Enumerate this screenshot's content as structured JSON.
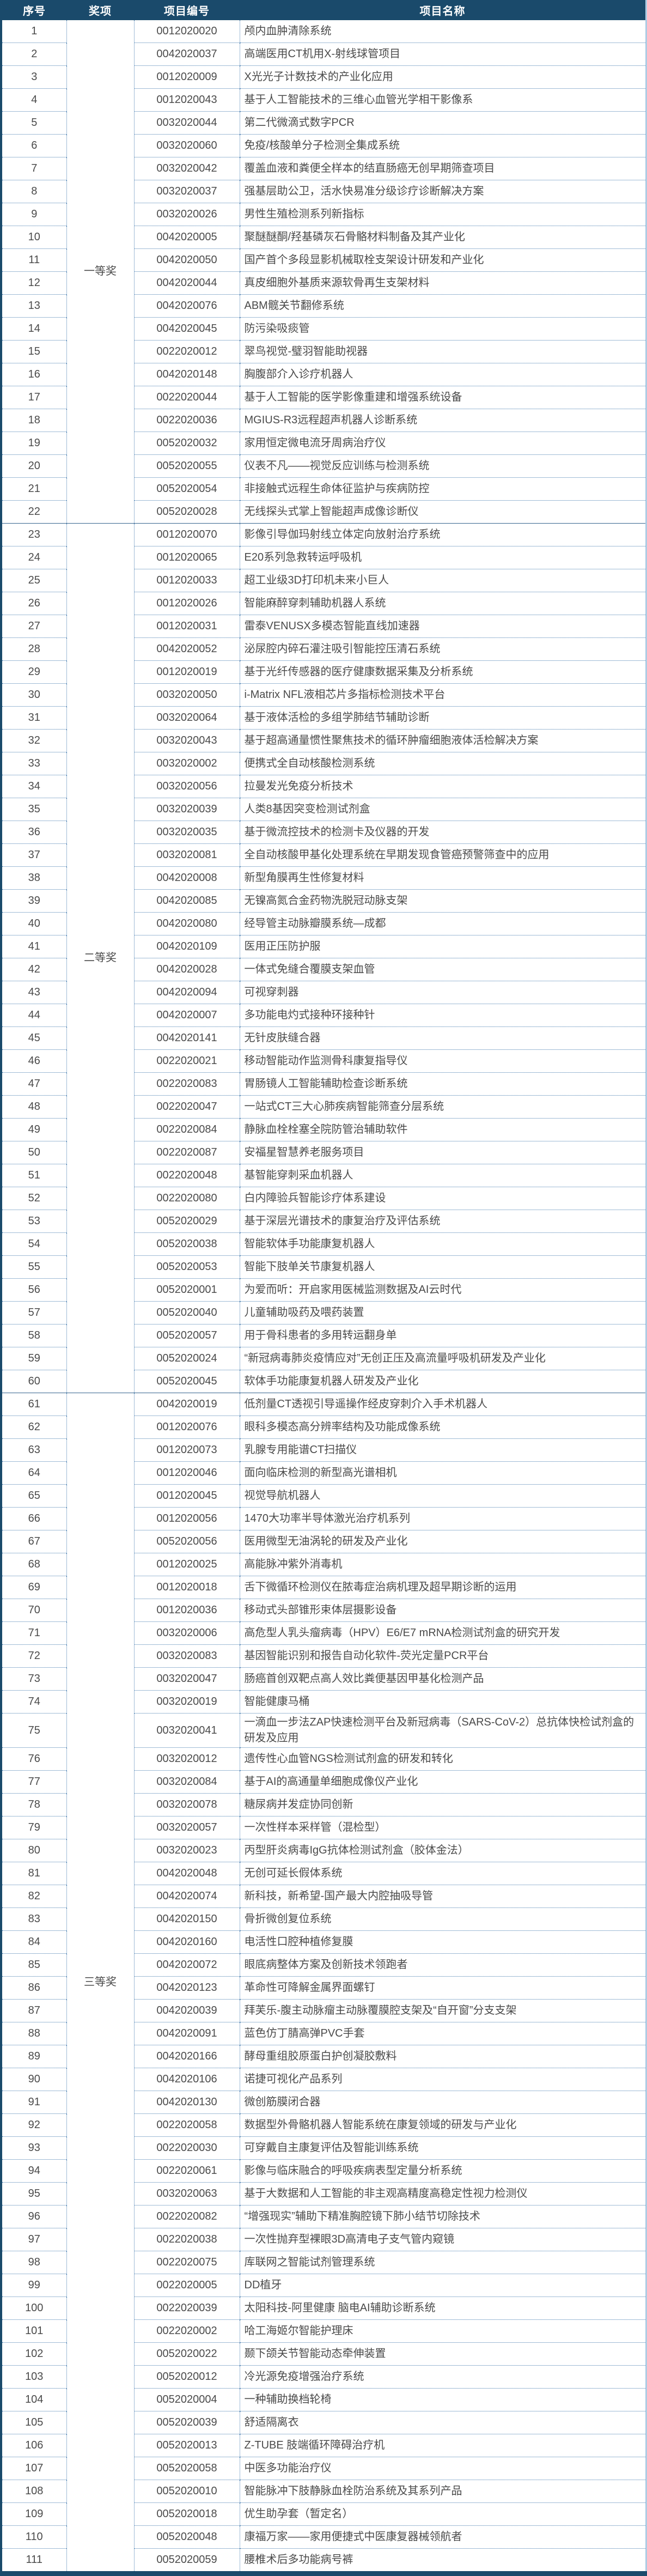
{
  "colors": {
    "header_bg": "#1a4a6b",
    "header_text": "#ffffff",
    "body_text": "#4a4a4a",
    "grid_dotted_line": "#4279ad",
    "group_boundary_line": "#36648e",
    "left_border": "#1a4a6b",
    "right_border": "#aecce4",
    "bottom_bar": "#1a4a6b"
  },
  "header": {
    "cols": [
      "序号",
      "奖项",
      "项目编号",
      "项目名称"
    ]
  },
  "table": {
    "award_groups": [
      {
        "label": "一等奖",
        "start": 1,
        "end": 22
      },
      {
        "label": "二等奖",
        "start": 23,
        "end": 60
      },
      {
        "label": "三等奖",
        "start": 61,
        "end": 111
      }
    ],
    "rows": [
      {
        "no": 1,
        "code": "0012020020",
        "name": "颅内血肿清除系统"
      },
      {
        "no": 2,
        "code": "0042020037",
        "name": "高端医用CT机用X-射线球管项目"
      },
      {
        "no": 3,
        "code": "0012020009",
        "name": "X光光子计数技术的产业化应用"
      },
      {
        "no": 4,
        "code": "0012020043",
        "name": "基于人工智能技术的三维心血管光学相干影像系"
      },
      {
        "no": 5,
        "code": "0032020044",
        "name": "第二代微滴式数字PCR"
      },
      {
        "no": 6,
        "code": "0032020060",
        "name": "免疫/核酸单分子检测全集成系统"
      },
      {
        "no": 7,
        "code": "0032020042",
        "name": "覆盖血液和粪便全样本的结直肠癌无创早期筛查项目"
      },
      {
        "no": 8,
        "code": "0032020037",
        "name": "强基层助公卫，活水快易准分级诊疗诊断解决方案"
      },
      {
        "no": 9,
        "code": "0032020026",
        "name": "男性生殖检测系列新指标"
      },
      {
        "no": 10,
        "code": "0042020005",
        "name": "聚醚醚酮/羟基磷灰石骨骼材料制备及其产业化"
      },
      {
        "no": 11,
        "code": "0042020050",
        "name": "国产首个多段显影机械取栓支架设计研发和产业化"
      },
      {
        "no": 12,
        "code": "0042020044",
        "name": "真皮细胞外基质来源软骨再生支架材料"
      },
      {
        "no": 13,
        "code": "0042020076",
        "name": "ABM髋关节翻修系统"
      },
      {
        "no": 14,
        "code": "0042020045",
        "name": "防污染吸痰管"
      },
      {
        "no": 15,
        "code": "0022020012",
        "name": "翠鸟视觉-璧羽智能助视器"
      },
      {
        "no": 16,
        "code": "0042020148",
        "name": "胸腹部介入诊疗机器人"
      },
      {
        "no": 17,
        "code": "0022020044",
        "name": "基于人工智能的医学影像重建和增强系统设备"
      },
      {
        "no": 18,
        "code": "0022020036",
        "name": "MGIUS-R3远程超声机器人诊断系统"
      },
      {
        "no": 19,
        "code": "0052020032",
        "name": "家用恒定微电流牙周病治疗仪"
      },
      {
        "no": 20,
        "code": "0052020055",
        "name": "仪表不凡——视觉反应训练与检测系统"
      },
      {
        "no": 21,
        "code": "0052020054",
        "name": "非接触式远程生命体征监护与疾病防控"
      },
      {
        "no": 22,
        "code": "0052020028",
        "name": "无线探头式掌上智能超声成像诊断仪"
      },
      {
        "no": 23,
        "code": "0012020070",
        "name": "影像引导伽玛射线立体定向放射治疗系统"
      },
      {
        "no": 24,
        "code": "0012020065",
        "name": "E20系列急救转运呼吸机"
      },
      {
        "no": 25,
        "code": "0012020033",
        "name": "超工业级3D打印机未来小巨人"
      },
      {
        "no": 26,
        "code": "0012020026",
        "name": "智能麻醉穿刺辅助机器人系统"
      },
      {
        "no": 27,
        "code": "0012020031",
        "name": "雷泰VENUSX多模态智能直线加速器"
      },
      {
        "no": 28,
        "code": "0042020052",
        "name": "泌尿腔内碎石灌注吸引智能控压清石系统"
      },
      {
        "no": 29,
        "code": "0012020019",
        "name": "基于光纤传感器的医疗健康数据采集及分析系统"
      },
      {
        "no": 30,
        "code": "0032020050",
        "name": "i-Matrix NFL液相芯片多指标检测技术平台"
      },
      {
        "no": 31,
        "code": "0032020064",
        "name": "基于液体活检的多组学肺结节辅助诊断"
      },
      {
        "no": 32,
        "code": "0032020043",
        "name": "基于超高通量惯性聚焦技术的循环肿瘤细胞液体活检解决方案"
      },
      {
        "no": 33,
        "code": "0032020002",
        "name": "便携式全自动核酸检测系统"
      },
      {
        "no": 34,
        "code": "0032020056",
        "name": "拉曼发光免疫分析技术"
      },
      {
        "no": 35,
        "code": "0032020039",
        "name": "人类8基因突变检测试剂盒"
      },
      {
        "no": 36,
        "code": "0032020035",
        "name": "基于微流控技术的检测卡及仪器的开发"
      },
      {
        "no": 37,
        "code": "0032020081",
        "name": "全自动核酸甲基化处理系统在早期发现食管癌预警筛查中的应用"
      },
      {
        "no": 38,
        "code": "0042020008",
        "name": "新型角膜再生性修复材料"
      },
      {
        "no": 39,
        "code": "0042020085",
        "name": "无镍高氮合金药物洗脱冠动脉支架"
      },
      {
        "no": 40,
        "code": "0042020080",
        "name": "经导管主动脉瓣膜系统—成都"
      },
      {
        "no": 41,
        "code": "0042020109",
        "name": "医用正压防护服"
      },
      {
        "no": 42,
        "code": "0042020028",
        "name": "一体式免缝合覆膜支架血管"
      },
      {
        "no": 43,
        "code": "0042020094",
        "name": "可视穿刺器"
      },
      {
        "no": 44,
        "code": "0042020007",
        "name": "多功能电灼式接种环接种针"
      },
      {
        "no": 45,
        "code": "0042020141",
        "name": "无针皮肤缝合器"
      },
      {
        "no": 46,
        "code": "0022020021",
        "name": "移动智能动作监测骨科康复指导仪"
      },
      {
        "no": 47,
        "code": "0022020083",
        "name": "胃肠镜人工智能辅助检查诊断系统"
      },
      {
        "no": 48,
        "code": "0022020047",
        "name": "一站式CT三大心肺疾病智能筛查分层系统"
      },
      {
        "no": 49,
        "code": "0022020084",
        "name": "静脉血栓栓塞全院防管治辅助软件"
      },
      {
        "no": 50,
        "code": "0022020087",
        "name": "安福星智慧养老服务项目"
      },
      {
        "no": 51,
        "code": "0022020048",
        "name": "基智能穿刺采血机器人"
      },
      {
        "no": 52,
        "code": "0022020080",
        "name": "白内障验兵智能诊疗体系建设"
      },
      {
        "no": 53,
        "code": "0052020029",
        "name": "基于深层光谱技术的康复治疗及评估系统"
      },
      {
        "no": 54,
        "code": "0052020038",
        "name": "智能软体手功能康复机器人"
      },
      {
        "no": 55,
        "code": "0052020053",
        "name": "智能下肢单关节康复机器人"
      },
      {
        "no": 56,
        "code": "0052020001",
        "name": "为爱而听：开启家用医械监测数据及AI云时代"
      },
      {
        "no": 57,
        "code": "0052020040",
        "name": "儿童辅助吸药及喂药装置"
      },
      {
        "no": 58,
        "code": "0052020057",
        "name": "用于骨科患者的多用转运翻身单"
      },
      {
        "no": 59,
        "code": "0052020024",
        "name": "“新冠病毒肺炎疫情应对”无创正压及高流量呼吸机研发及产业化"
      },
      {
        "no": 60,
        "code": "0052020045",
        "name": "软体手功能康复机器人研发及产业化"
      },
      {
        "no": 61,
        "code": "0042020019",
        "name": "低剂量CT透视引导遥操作经皮穿刺介入手术机器人"
      },
      {
        "no": 62,
        "code": "0012020076",
        "name": "眼科多模态高分辨率结构及功能成像系统"
      },
      {
        "no": 63,
        "code": "0012020073",
        "name": "乳腺专用能谱CT扫描仪"
      },
      {
        "no": 64,
        "code": "0012020046",
        "name": "面向临床检测的新型高光谱相机"
      },
      {
        "no": 65,
        "code": "0012020045",
        "name": "视觉导航机器人"
      },
      {
        "no": 66,
        "code": "0012020056",
        "name": "1470大功率半导体激光治疗机系列"
      },
      {
        "no": 67,
        "code": "0052020056",
        "name": "医用微型无油涡轮的研发及产业化"
      },
      {
        "no": 68,
        "code": "0012020025",
        "name": "高能脉冲紫外消毒机"
      },
      {
        "no": 69,
        "code": "0012020018",
        "name": "舌下微循环检测仪在脓毒症治病机理及超早期诊断的运用"
      },
      {
        "no": 70,
        "code": "0012020036",
        "name": "移动式头部锥形束体层摄影设备"
      },
      {
        "no": 71,
        "code": "0032020006",
        "name": "高危型人乳头瘤病毒（HPV）E6/E7 mRNA检测试剂盒的研究开发"
      },
      {
        "no": 72,
        "code": "0032020083",
        "name": "基因智能识别和报告自动化软件-荧光定量PCR平台"
      },
      {
        "no": 73,
        "code": "0032020047",
        "name": "肠癌首创双靶点高人效比粪便基因甲基化检测产品"
      },
      {
        "no": 74,
        "code": "0032020019",
        "name": "智能健康马桶"
      },
      {
        "no": 75,
        "code": "0032020041",
        "name": "一滴血一步法ZAP快速检测平台及新冠病毒（SARS-CoV-2）总抗体快检试剂盒的研发及应用"
      },
      {
        "no": 76,
        "code": "0032020012",
        "name": "遗传性心血管NGS检测试剂盒的研发和转化"
      },
      {
        "no": 77,
        "code": "0032020084",
        "name": "基于AI的高通量单细胞成像仪产业化"
      },
      {
        "no": 78,
        "code": "0032020078",
        "name": "糖尿病并发症协同创新"
      },
      {
        "no": 79,
        "code": "0032020057",
        "name": "一次性样本采样管（混检型）"
      },
      {
        "no": 80,
        "code": "0032020023",
        "name": "丙型肝炎病毒IgG抗体检测试剂盒（胶体金法）"
      },
      {
        "no": 81,
        "code": "0042020048",
        "name": "无创可延长假体系统"
      },
      {
        "no": 82,
        "code": "0042020074",
        "name": "新科技，新希望-国产最大内腔抽吸导管"
      },
      {
        "no": 83,
        "code": "0042020150",
        "name": "骨折微创复位系统"
      },
      {
        "no": 84,
        "code": "0042020160",
        "name": "电活性口腔种植修复膜"
      },
      {
        "no": 85,
        "code": "0042020072",
        "name": "眼底病整体方案及创新技术领跑者"
      },
      {
        "no": 86,
        "code": "0042020123",
        "name": "革命性可降解金属界面螺钉"
      },
      {
        "no": 87,
        "code": "0042020039",
        "name": "拜芙乐-腹主动脉瘤主动脉覆膜腔支架及“自开窗”分支支架"
      },
      {
        "no": 88,
        "code": "0042020091",
        "name": "蓝色仿丁腈高弹PVC手套"
      },
      {
        "no": 89,
        "code": "0042020166",
        "name": "酵母重组胶原蛋白护创凝胶敷料"
      },
      {
        "no": 90,
        "code": "0042020106",
        "name": "诺捷可视化产品系列"
      },
      {
        "no": 91,
        "code": "0042020130",
        "name": "微创筋膜闭合器"
      },
      {
        "no": 92,
        "code": "0022020058",
        "name": "数据型外骨骼机器人智能系统在康复领域的研发与产业化"
      },
      {
        "no": 93,
        "code": "0022020030",
        "name": "可穿戴自主康复评估及智能训练系统"
      },
      {
        "no": 94,
        "code": "0022020061",
        "name": "影像与临床融合的呼吸疾病表型定量分析系统"
      },
      {
        "no": 95,
        "code": "0032020063",
        "name": "基于大数据和人工智能的非主观高精度高稳定性视力检测仪"
      },
      {
        "no": 96,
        "code": "0022020082",
        "name": "“增强现实”辅助下精准胸腔镜下肺小结节切除技术"
      },
      {
        "no": 97,
        "code": "0022020038",
        "name": "一次性抛弃型裸眼3D高清电子支气管内窥镜"
      },
      {
        "no": 98,
        "code": "0022020075",
        "name": "库联网之智能试剂管理系统"
      },
      {
        "no": 99,
        "code": "0022020005",
        "name": "DD植牙"
      },
      {
        "no": 100,
        "code": "0022020039",
        "name": "太阳科技-阿里健康 脑电AI辅助诊断系统"
      },
      {
        "no": 101,
        "code": "0022020002",
        "name": "哈工海姬尔智能护理床"
      },
      {
        "no": 102,
        "code": "0052020022",
        "name": "颞下颌关节智能动态牵伸装置"
      },
      {
        "no": 103,
        "code": "0052020012",
        "name": "冷光源免疫增强治疗系统"
      },
      {
        "no": 104,
        "code": "0052020004",
        "name": "一种辅助换档轮椅"
      },
      {
        "no": 105,
        "code": "0052020039",
        "name": "舒适隔离衣"
      },
      {
        "no": 106,
        "code": "0052020013",
        "name": "Z-TUBE 肢端循环障碍治疗机"
      },
      {
        "no": 107,
        "code": "0052020058",
        "name": "中医多功能治疗仪"
      },
      {
        "no": 108,
        "code": "0052020010",
        "name": "智能脉冲下肢静脉血栓防治系统及其系列产品"
      },
      {
        "no": 109,
        "code": "0052020018",
        "name": "优生助孕套（暂定名）"
      },
      {
        "no": 110,
        "code": "0052020048",
        "name": "康福万家——家用便捷式中医康复器械领航者"
      },
      {
        "no": 111,
        "code": "0052020059",
        "name": "腰椎术后多功能病号裤"
      }
    ]
  }
}
